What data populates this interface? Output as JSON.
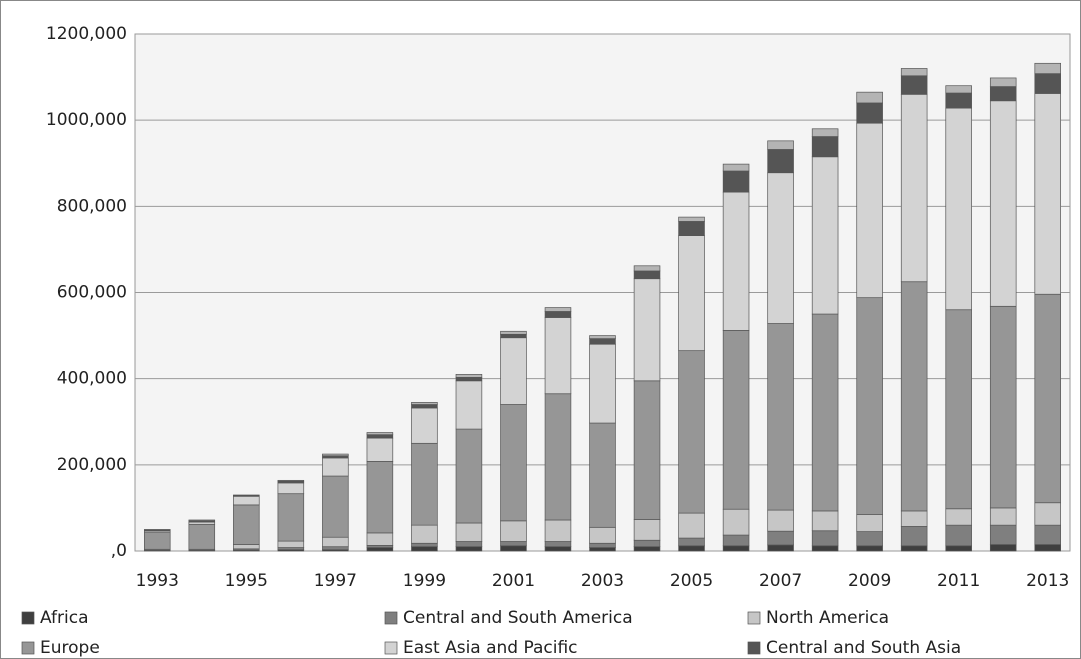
{
  "chart_data": {
    "type": "stacked_bar",
    "categories": [
      "1993",
      null,
      "1995",
      null,
      "1997",
      null,
      "1999",
      null,
      "2001",
      null,
      "2003",
      null,
      "2005",
      null,
      "2007",
      null,
      "2009",
      null,
      "2011",
      null,
      "2013"
    ],
    "series": [
      {
        "name": "Africa",
        "color": "#3f3f3f",
        "values": [
          1000,
          1000,
          2000,
          3000,
          3000,
          8000,
          10000,
          10000,
          12000,
          10000,
          8000,
          10000,
          12000,
          12000,
          14000,
          12000,
          12000,
          12000,
          12000,
          15000,
          15000
        ]
      },
      {
        "name": "Central and South America",
        "color": "#7f7f7f",
        "values": [
          1000,
          1000,
          3000,
          5000,
          7000,
          5000,
          8000,
          12000,
          10000,
          12000,
          10000,
          15000,
          18000,
          25000,
          32000,
          35000,
          33000,
          45000,
          48000,
          45000,
          45000
        ]
      },
      {
        "name": "North America",
        "color": "#c6c6c6",
        "values": [
          2000,
          2000,
          10000,
          15000,
          22000,
          29000,
          42000,
          43000,
          48000,
          50000,
          37000,
          48000,
          58000,
          60000,
          49000,
          46000,
          40000,
          36000,
          38000,
          40000,
          52000
        ]
      },
      {
        "name": "Europe",
        "color": "#969696",
        "values": [
          40000,
          58000,
          92000,
          110000,
          142000,
          166000,
          190000,
          218000,
          270000,
          293000,
          242000,
          322000,
          377000,
          415000,
          433000,
          457000,
          503000,
          532000,
          462000,
          468000,
          484000
        ]
      },
      {
        "name": "East Asia and Pacific",
        "color": "#d3d3d3",
        "values": [
          3000,
          5000,
          20000,
          25000,
          42000,
          54000,
          82000,
          112000,
          155000,
          177000,
          183000,
          237000,
          267000,
          321000,
          350000,
          365000,
          405000,
          435000,
          468000,
          477000,
          466000
        ]
      },
      {
        "name": "Central and South Asia",
        "color": "#555555",
        "values": [
          2000,
          3000,
          2000,
          4000,
          5000,
          8000,
          8000,
          8000,
          8000,
          14000,
          13000,
          18000,
          33000,
          49000,
          54000,
          47000,
          47000,
          43000,
          35000,
          33000,
          46000
        ]
      },
      {
        "color": "#b4b4b4",
        "values": [
          1000,
          2000,
          1000,
          2000,
          4000,
          5000,
          5000,
          7000,
          7000,
          9000,
          7000,
          12000,
          10000,
          16000,
          20000,
          18000,
          25000,
          17000,
          17000,
          20000,
          24000
        ]
      }
    ],
    "ylim": [
      0,
      1200000
    ],
    "yticks": [
      {
        "value": 0,
        "label": ",0"
      },
      {
        "value": 200000,
        "label": "200,000"
      },
      {
        "value": 400000,
        "label": "400,000"
      },
      {
        "value": 600000,
        "label": "600,000"
      },
      {
        "value": 800000,
        "label": "800,000"
      },
      {
        "value": 1000000,
        "label": "1000,000"
      },
      {
        "value": 1200000,
        "label": "1200,000"
      }
    ],
    "grid": true
  }
}
